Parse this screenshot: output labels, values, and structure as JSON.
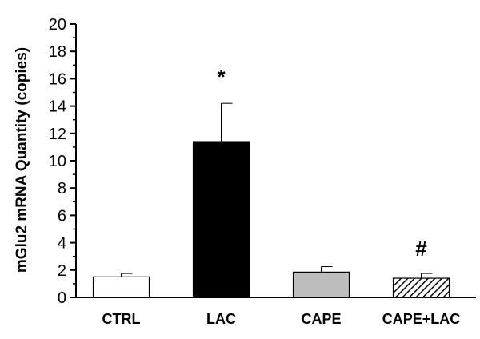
{
  "chart_data": {
    "type": "bar",
    "title": "",
    "xlabel": "",
    "ylabel": "mGlu2 mRNA Quantity (copies)",
    "ylim": [
      0,
      20
    ],
    "yticks": [
      0,
      2,
      4,
      6,
      8,
      10,
      12,
      14,
      16,
      18,
      20
    ],
    "grid": false,
    "categories": [
      "CTRL",
      "LAC",
      "CAPE",
      "CAPE+LAC"
    ],
    "values": [
      1.5,
      11.4,
      1.85,
      1.4
    ],
    "errors": [
      0.25,
      2.8,
      0.4,
      0.35
    ],
    "fills": [
      "white",
      "black",
      "gray",
      "hatched"
    ],
    "colors": {
      "white": "#ffffff",
      "black": "#000000",
      "gray": "#bdbdbd",
      "hatch_bg": "#ffffff",
      "hatch_line": "#000000"
    },
    "annotations": [
      "",
      "*",
      "",
      "#"
    ]
  }
}
